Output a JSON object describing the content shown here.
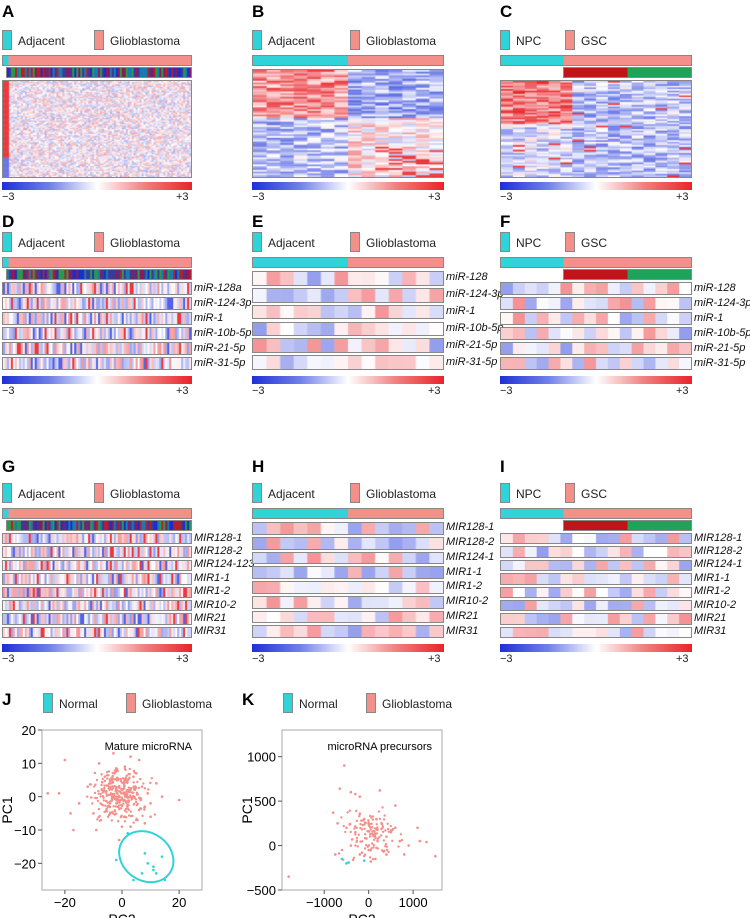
{
  "colors": {
    "normal": "#2fd3d8",
    "tumor": "#f4908a",
    "low": "#1f2fd6",
    "high": "#e8242a",
    "subtype_red": "#c0141b",
    "subtype_green": "#1fa35a"
  },
  "panels": [
    {
      "id": "A",
      "legend": [
        "Adjacent",
        "Glioblastoma"
      ],
      "scale": [
        "−3",
        "+3"
      ],
      "rows": []
    },
    {
      "id": "B",
      "legend": [
        "Adjacent",
        "Glioblastoma"
      ],
      "scale": [
        "−3",
        "+3"
      ],
      "rows": []
    },
    {
      "id": "C",
      "legend": [
        "NPC",
        "GSC"
      ],
      "scale": [
        "−3",
        "+3"
      ],
      "rows": []
    },
    {
      "id": "D",
      "legend": [
        "Adjacent",
        "Glioblastoma"
      ],
      "scale": [
        "−3",
        "+3"
      ],
      "rows": [
        "miR-128a",
        "miR-124-3p",
        "miR-1",
        "miR-10b-5p",
        "miR-21-5p",
        "miR-31-5p"
      ]
    },
    {
      "id": "E",
      "legend": [
        "Adjacent",
        "Glioblastoma"
      ],
      "scale": [
        "−3",
        "+3"
      ],
      "rows": [
        "miR-128",
        "miR-124-3p",
        "miR-1",
        "miR-10b-5p",
        "miR-21-5p",
        "miR-31-5p"
      ]
    },
    {
      "id": "F",
      "legend": [
        "NPC",
        "GSC"
      ],
      "scale": [
        "−3",
        "+3"
      ],
      "rows": [
        "miR-128",
        "miR-124-3p",
        "miR-1",
        "miR-10b-5p",
        "miR-21-5p",
        "miR-31-5p"
      ]
    },
    {
      "id": "G",
      "legend": [
        "Adjacent",
        "Glioblastoma"
      ],
      "scale": [
        "−3",
        "+3"
      ],
      "rows": [
        "MIR128-1",
        "MIR128-2",
        "MIR124-123",
        "MIR1-1",
        "MIR1-2",
        "MIR10-2",
        "MIR21",
        "MIR31"
      ]
    },
    {
      "id": "H",
      "legend": [
        "Adjacent",
        "Glioblastoma"
      ],
      "scale": [
        "−3",
        "+3"
      ],
      "rows": [
        "MIR128-1",
        "MIR128-2",
        "MIR124-1",
        "MIR1-1",
        "MIR1-2",
        "MIR10-2",
        "MIR21",
        "MIR31"
      ]
    },
    {
      "id": "I",
      "legend": [
        "NPC",
        "GSC"
      ],
      "scale": [
        "−3",
        "+3"
      ],
      "rows": [
        "MIR128-1",
        "MIR128-2",
        "MIR124-1",
        "MIR1-1",
        "MIR1-2",
        "MIR10-2",
        "MIR21",
        "MIR31"
      ]
    }
  ],
  "chart_data": [
    {
      "id": "J",
      "type": "scatter",
      "title": "Mature microRNA",
      "xlabel": "PC2",
      "ylabel": "PC1",
      "legend": [
        "Normal",
        "Glioblastoma"
      ],
      "xlim": [
        -28,
        28
      ],
      "ylim": [
        -28,
        20
      ],
      "xticks": [
        "−20",
        "0",
        "20"
      ],
      "yticks": [
        "20",
        "10",
        "0",
        "−10",
        "−20"
      ],
      "xtickvals": [
        -20,
        0,
        20
      ],
      "ytickvals": [
        20,
        10,
        0,
        -10,
        -20
      ],
      "series": [
        {
          "name": "Normal",
          "x": [
            2,
            8,
            14,
            11,
            12,
            7,
            4,
            15,
            -2,
            11,
            9
          ],
          "y": [
            -11,
            -17,
            -18,
            -21,
            -23,
            -23,
            -25,
            -25,
            -19,
            -22,
            -20
          ]
        },
        {
          "name": "Glioblastoma",
          "x": [
            -26,
            -20,
            -17,
            -15,
            -12,
            -10,
            -8,
            -6,
            -5,
            -4,
            -3,
            -2,
            -1,
            0,
            1,
            2,
            3,
            4,
            5,
            6,
            7,
            8,
            9,
            10,
            12,
            14,
            20,
            -18,
            -22,
            -9,
            3,
            5,
            -1,
            1,
            6,
            8,
            0,
            -3,
            4,
            10
          ],
          "y": [
            1,
            11,
            -10,
            -2,
            3,
            -5,
            10,
            6,
            -3,
            4,
            13,
            8,
            -1,
            2,
            -6,
            5,
            12,
            0,
            7,
            -4,
            3,
            -8,
            1,
            -2,
            4,
            0,
            -1,
            -5,
            1,
            -10,
            -9,
            -7,
            -13,
            9,
            11,
            -3,
            -9,
            0,
            6,
            -6
          ]
        },
        {
          "name": "ellipse",
          "center": [
            8.5,
            -18
          ],
          "rx": 10,
          "ry": 6.5
        }
      ]
    },
    {
      "id": "K",
      "type": "scatter",
      "title": "microRNA precursors",
      "xlabel": "PC2",
      "ylabel": "PC1",
      "legend": [
        "Normal",
        "Glioblastoma"
      ],
      "xlim": [
        -1950,
        1650
      ],
      "ylim": [
        -500,
        1300
      ],
      "xticks": [
        "−1000",
        "0",
        "1000"
      ],
      "yticks": [
        "1000",
        "500",
        "0",
        "−500"
      ],
      "xtickvals": [
        -1000,
        0,
        1000
      ],
      "ytickvals": [
        1000,
        500,
        0,
        -500
      ],
      "series": [
        {
          "name": "Normal",
          "x": [
            -500,
            -450,
            -100,
            -600
          ],
          "y": [
            -200,
            -190,
            -170,
            -150
          ]
        },
        {
          "name": "Glioblastoma",
          "x": [
            -1800,
            -550,
            -650,
            -400,
            -300,
            -200,
            250,
            600,
            -800,
            -700,
            -500,
            -300,
            -100,
            0,
            100,
            200,
            300,
            400,
            500,
            600,
            700,
            900,
            1100,
            1300,
            1500,
            1150,
            -750,
            -600,
            -400,
            -200,
            0,
            200,
            400,
            -50,
            150,
            350,
            -350,
            -150,
            50,
            800
          ],
          "y": [
            -350,
            900,
            640,
            600,
            580,
            550,
            620,
            450,
            370,
            250,
            200,
            150,
            300,
            260,
            120,
            180,
            240,
            100,
            150,
            200,
            50,
            0,
            200,
            40,
            -120,
            50,
            -100,
            -50,
            0,
            -100,
            -50,
            50,
            -100,
            80,
            -150,
            -60,
            -160,
            -80,
            -180,
            -100
          ]
        }
      ]
    }
  ]
}
